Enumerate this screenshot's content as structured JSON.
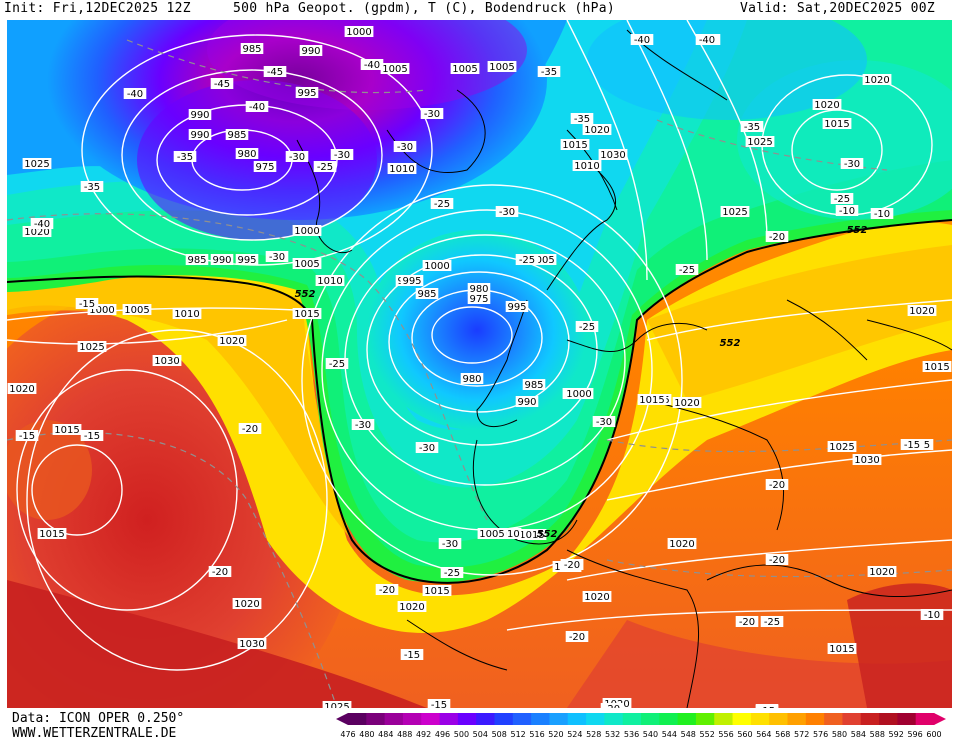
{
  "header": {
    "init": "Init: Fri,12DEC2025 12Z",
    "title": "500 hPa Geopot. (gpdm), T (C), Bodendruck (hPa)",
    "valid": "Valid: Sat,20DEC2025 00Z"
  },
  "footer": {
    "data_source": "Data: ICON OPER 0.250°",
    "website": "WWW.WETTERZENTRALE.DE"
  },
  "colorbar": {
    "ticks": [
      "476",
      "480",
      "484",
      "488",
      "492",
      "496",
      "500",
      "504",
      "508",
      "512",
      "516",
      "520",
      "524",
      "528",
      "532",
      "536",
      "540",
      "544",
      "548",
      "552",
      "556",
      "560",
      "564",
      "568",
      "572",
      "576",
      "580",
      "584",
      "588",
      "592",
      "596",
      "600"
    ],
    "colors": [
      "#5a0060",
      "#7a007a",
      "#9a009a",
      "#b400b4",
      "#cc00cc",
      "#9b00e6",
      "#6a00ff",
      "#3b1aff",
      "#2040ff",
      "#2060ff",
      "#1a80ff",
      "#1aa0ff",
      "#10c0ff",
      "#10d8f0",
      "#10e8c8",
      "#10f0a0",
      "#10f078",
      "#10f050",
      "#20f020",
      "#60f000",
      "#c0f000",
      "#ffff00",
      "#ffe000",
      "#ffc000",
      "#ffa000",
      "#ff8000",
      "#f06020",
      "#e04030",
      "#c82020",
      "#b01020",
      "#a00030",
      "#e0006a"
    ]
  },
  "map_labels": {
    "pressure": [
      "985",
      "990",
      "1000",
      "1005",
      "1005",
      "990",
      "995",
      "990",
      "985",
      "980",
      "975",
      "1025",
      "1020",
      "985",
      "990",
      "995",
      "1010",
      "1000",
      "1005",
      "1010",
      "995",
      "1000",
      "995",
      "980",
      "975",
      "985",
      "1000",
      "1005",
      "1010",
      "1015",
      "1020",
      "1025",
      "1030",
      "1020",
      "1015",
      "1015",
      "1020",
      "1025",
      "1015",
      "1020",
      "1030",
      "1025",
      "1020",
      "1015",
      "1010",
      "1005",
      "995",
      "980",
      "985",
      "990",
      "1000",
      "1015",
      "1020",
      "1025",
      "1030",
      "1020",
      "1020",
      "1015",
      "1020",
      "1020",
      "1015",
      "1015",
      "1020",
      "1015",
      "1010",
      "1005",
      "1000",
      "1015",
      "1020",
      "1030",
      "1025",
      "1020",
      "1005",
      "1015"
    ],
    "temperature": [
      "-45",
      "-45",
      "-40",
      "-40",
      "-40",
      "-40",
      "-35",
      "-40",
      "-35",
      "-30",
      "-35",
      "-30",
      "-30",
      "-25",
      "-30",
      "-35",
      "-30",
      "-20",
      "-20",
      "-20",
      "-25",
      "-25",
      "-30",
      "-25",
      "-15",
      "-30",
      "-25",
      "-30",
      "-30",
      "-20",
      "-15",
      "-25",
      "-25",
      "-25",
      "-20",
      "-30",
      "-25",
      "-20",
      "-20",
      "-15",
      "-20",
      "-15",
      "-15",
      "-20",
      "-10",
      "-15",
      "-15",
      "-10",
      "-10",
      "-35",
      "-30",
      "-25",
      "-20",
      "-15",
      "-15",
      "-40",
      "-40"
    ],
    "contour_552": [
      "552",
      "552",
      "552",
      "552"
    ]
  }
}
